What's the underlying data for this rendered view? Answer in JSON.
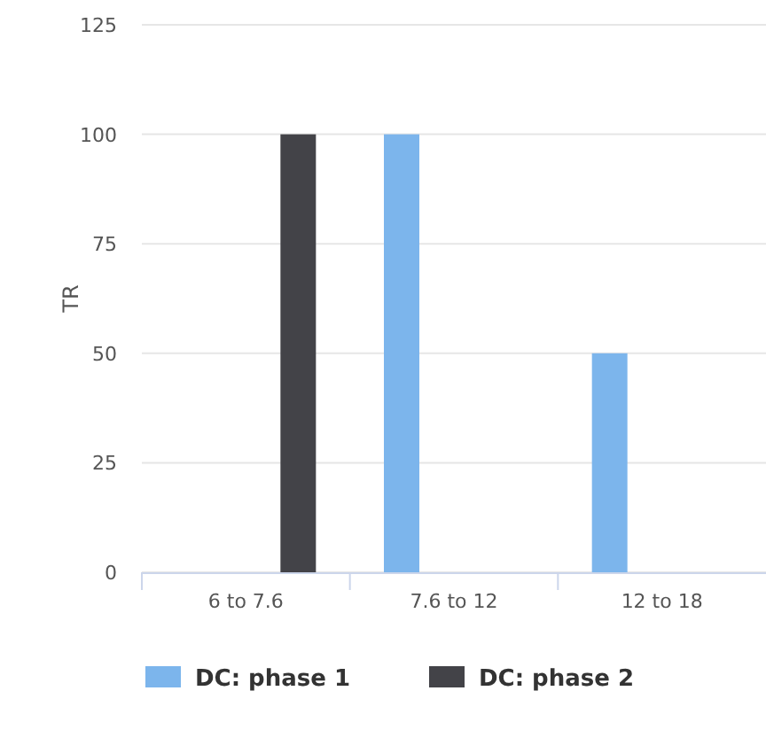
{
  "chart_data": {
    "type": "bar",
    "ylabel": "TR",
    "categories": [
      "6 to 7.6",
      "7.6 to 12",
      "12 to 18"
    ],
    "series": [
      {
        "name": "DC: phase 1",
        "color": "#7cb5ec",
        "values": [
          null,
          100,
          50
        ]
      },
      {
        "name": "DC: phase 2",
        "color": "#434348",
        "values": [
          100,
          null,
          null
        ]
      }
    ],
    "ylim": [
      0,
      125
    ],
    "yticks": [
      0,
      25,
      50,
      75,
      100,
      125
    ],
    "grid": "y",
    "legend": "bottom left"
  }
}
